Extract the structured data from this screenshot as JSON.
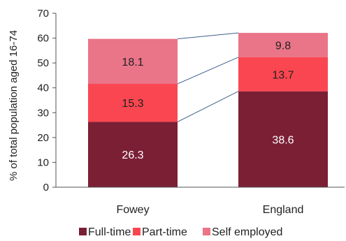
{
  "chart_data": {
    "type": "bar",
    "stacked": true,
    "categories": [
      "Fowey",
      "England"
    ],
    "series": [
      {
        "name": "Full-time",
        "values": [
          26.3,
          38.6
        ],
        "color": "#7b1f35",
        "label_color": "#ffffff"
      },
      {
        "name": "Part-time",
        "values": [
          15.3,
          13.7
        ],
        "color": "#fa4650",
        "label_color": "#222222"
      },
      {
        "name": "Self employed",
        "values": [
          18.1,
          9.8
        ],
        "color": "#ea7488",
        "label_color": "#222222"
      }
    ],
    "data_labels": [
      [
        "26.3",
        "38.6"
      ],
      [
        "15.3",
        "13.7"
      ],
      [
        "18.1",
        "9.8"
      ]
    ],
    "ylabel": "% of total population aged 16-74",
    "ylim": [
      0,
      70
    ],
    "y_ticks": [
      "0",
      "10",
      "20",
      "30",
      "40",
      "50",
      "60",
      "70"
    ],
    "series_connectors": true,
    "grid": false,
    "legend": "bottom"
  }
}
